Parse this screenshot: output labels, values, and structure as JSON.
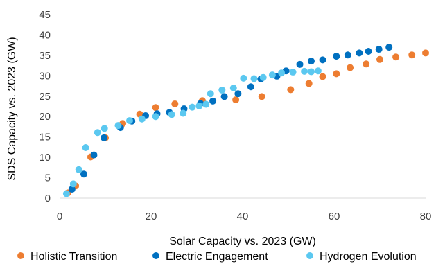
{
  "chart_data": {
    "type": "scatter",
    "xlabel": "Solar Capacity vs. 2023 (GW)",
    "ylabel": "SDS Capacity vs. 2023 (GW)",
    "xlim": [
      0,
      80
    ],
    "ylim": [
      0,
      45
    ],
    "x_ticks": [
      "0",
      "20",
      "40",
      "60",
      "80"
    ],
    "y_ticks": [
      "0",
      "5",
      "10",
      "15",
      "20",
      "25",
      "30",
      "35",
      "40",
      "45"
    ],
    "grid": false,
    "legend_position": "bottom",
    "series": [
      {
        "name": "Holistic Transition",
        "color": "#ED7D31",
        "points": [
          [
            1.8,
            1.3
          ],
          [
            3.5,
            3.0
          ],
          [
            6.8,
            10.1
          ],
          [
            10.0,
            14.8
          ],
          [
            13.8,
            18.3
          ],
          [
            17.5,
            20.6
          ],
          [
            21.0,
            22.2
          ],
          [
            25.2,
            23.1
          ],
          [
            31.2,
            23.9
          ],
          [
            38.5,
            24.1
          ],
          [
            44.2,
            24.9
          ],
          [
            50.5,
            26.6
          ],
          [
            54.5,
            28.1
          ],
          [
            57.5,
            29.8
          ],
          [
            60.5,
            30.5
          ],
          [
            63.5,
            32.0
          ],
          [
            67.0,
            32.9
          ],
          [
            70.0,
            34.0
          ],
          [
            73.5,
            34.6
          ],
          [
            77.0,
            35.1
          ],
          [
            80.0,
            35.6
          ]
        ]
      },
      {
        "name": "Electric Engagement",
        "color": "#0070C0",
        "points": [
          [
            2.7,
            2.2
          ],
          [
            5.3,
            5.9
          ],
          [
            7.5,
            10.6
          ],
          [
            9.7,
            14.8
          ],
          [
            13.3,
            17.3
          ],
          [
            15.8,
            18.9
          ],
          [
            18.8,
            20.2
          ],
          [
            21.3,
            20.7
          ],
          [
            24.0,
            21.0
          ],
          [
            27.2,
            21.9
          ],
          [
            30.8,
            23.2
          ],
          [
            33.5,
            23.8
          ],
          [
            36.0,
            24.9
          ],
          [
            39.0,
            25.6
          ],
          [
            41.8,
            27.3
          ],
          [
            44.0,
            29.2
          ],
          [
            47.5,
            29.9
          ],
          [
            49.5,
            31.2
          ],
          [
            52.5,
            32.8
          ],
          [
            55.0,
            33.6
          ],
          [
            57.5,
            33.9
          ],
          [
            60.5,
            34.8
          ],
          [
            63.0,
            35.1
          ],
          [
            65.5,
            35.6
          ],
          [
            67.5,
            36.0
          ],
          [
            69.8,
            36.5
          ],
          [
            72.0,
            37.0
          ]
        ]
      },
      {
        "name": "Hydrogen Evolution",
        "color": "#5BC8F0",
        "points": [
          [
            1.5,
            1.1
          ],
          [
            3.0,
            3.5
          ],
          [
            4.2,
            7.0
          ],
          [
            5.7,
            12.4
          ],
          [
            8.3,
            16.1
          ],
          [
            9.8,
            17.1
          ],
          [
            12.8,
            17.8
          ],
          [
            15.3,
            19.0
          ],
          [
            18.0,
            19.4
          ],
          [
            21.0,
            20.0
          ],
          [
            24.5,
            20.5
          ],
          [
            27.0,
            20.8
          ],
          [
            29.0,
            22.3
          ],
          [
            30.5,
            22.6
          ],
          [
            32.0,
            23.0
          ],
          [
            33.0,
            25.6
          ],
          [
            35.5,
            26.5
          ],
          [
            38.0,
            27.0
          ],
          [
            40.2,
            29.4
          ],
          [
            42.5,
            29.3
          ],
          [
            44.5,
            29.6
          ],
          [
            46.5,
            30.2
          ],
          [
            48.5,
            30.7
          ],
          [
            51.0,
            30.9
          ],
          [
            53.5,
            31.1
          ],
          [
            55.0,
            31.0
          ],
          [
            56.5,
            31.2
          ]
        ]
      }
    ]
  }
}
